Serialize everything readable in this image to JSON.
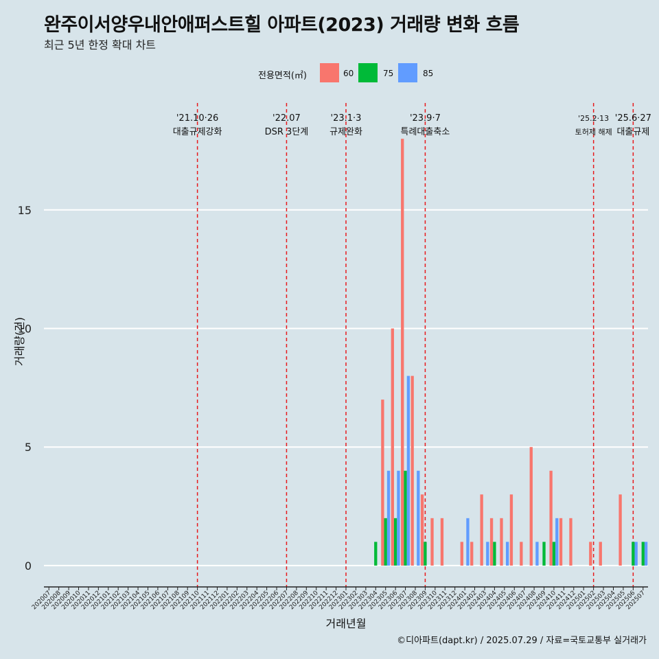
{
  "title": "완주이서양우내안애퍼스트힐 아파트(2023) 거래량 변화 흐름",
  "subtitle": "최근 5년 한정 확대 차트",
  "caption": "©디아파트(dapt.kr) / 2025.07.29 / 자료=국토교통부 실거래가",
  "colors": {
    "background": "#d7e4ea",
    "grid": "#ffffff",
    "event_line": "#e8191c",
    "axis": "#222222"
  },
  "chart_data": {
    "type": "bar",
    "xlabel": "거래년월",
    "ylabel": "거래량(건)",
    "ylim": [
      -0.9,
      19.8
    ],
    "yticks": [
      0,
      5,
      10,
      15
    ],
    "grid": true,
    "legend": {
      "title": "전용면적(㎡)",
      "position": "top"
    },
    "categories": [
      "202007",
      "202008",
      "202009",
      "202010",
      "202011",
      "202012",
      "202101",
      "202102",
      "202103",
      "202104",
      "202105",
      "202106",
      "202107",
      "202108",
      "202109",
      "202110",
      "202111",
      "202112",
      "202201",
      "202202",
      "202203",
      "202204",
      "202205",
      "202206",
      "202207",
      "202208",
      "202209",
      "202210",
      "202211",
      "202212",
      "202301",
      "202302",
      "202303",
      "202304",
      "202305",
      "202306",
      "202307",
      "202308",
      "202309",
      "202310",
      "202311",
      "202312",
      "202401",
      "202402",
      "202403",
      "202404",
      "202405",
      "202406",
      "202407",
      "202408",
      "202409",
      "202410",
      "202411",
      "202412",
      "202501",
      "202502",
      "202503",
      "202504",
      "202505",
      "202506",
      "202507"
    ],
    "series": [
      {
        "name": "60",
        "color": "#f8766d",
        "values": [
          0,
          0,
          0,
          0,
          0,
          0,
          0,
          0,
          0,
          0,
          0,
          0,
          0,
          0,
          0,
          0,
          0,
          0,
          0,
          0,
          0,
          0,
          0,
          0,
          0,
          0,
          0,
          0,
          0,
          0,
          0,
          0,
          0,
          0,
          7,
          10,
          18,
          8,
          3,
          2,
          2,
          0,
          1,
          1,
          3,
          2,
          2,
          3,
          1,
          5,
          0,
          4,
          2,
          2,
          0,
          1,
          1,
          0,
          3,
          0,
          0
        ]
      },
      {
        "name": "75",
        "color": "#00ba38",
        "values": [
          0,
          0,
          0,
          0,
          0,
          0,
          0,
          0,
          0,
          0,
          0,
          0,
          0,
          0,
          0,
          0,
          0,
          0,
          0,
          0,
          0,
          0,
          0,
          0,
          0,
          0,
          0,
          0,
          0,
          0,
          0,
          0,
          0,
          1,
          2,
          2,
          4,
          0,
          1,
          0,
          0,
          0,
          0,
          0,
          0,
          1,
          0,
          0,
          0,
          0,
          1,
          1,
          0,
          0,
          0,
          0,
          0,
          0,
          0,
          1,
          1
        ]
      },
      {
        "name": "85",
        "color": "#619cff",
        "values": [
          0,
          0,
          0,
          0,
          0,
          0,
          0,
          0,
          0,
          0,
          0,
          0,
          0,
          0,
          0,
          0,
          0,
          0,
          0,
          0,
          0,
          0,
          0,
          0,
          0,
          0,
          0,
          0,
          0,
          0,
          0,
          0,
          0,
          0,
          4,
          4,
          8,
          4,
          0,
          0,
          0,
          0,
          2,
          0,
          1,
          0,
          1,
          0,
          0,
          1,
          0,
          2,
          0,
          0,
          0,
          0,
          0,
          0,
          0,
          1,
          1
        ]
      }
    ],
    "events": [
      {
        "date": "'21.10·26",
        "label": "대출규제강화",
        "category": "202110"
      },
      {
        "date": "'22.07",
        "label": "DSR 3단계",
        "category": "202207"
      },
      {
        "date": "'23.1·3",
        "label": "규제완화",
        "category": "202301"
      },
      {
        "date": "'23.9·7",
        "label": "특례대출축소",
        "category": "202309"
      },
      {
        "date": "'25.2·13",
        "label": "토허제 해제",
        "category": "202502"
      },
      {
        "date": "'25.6·27",
        "label": "대출규제",
        "category": "202506"
      }
    ]
  }
}
